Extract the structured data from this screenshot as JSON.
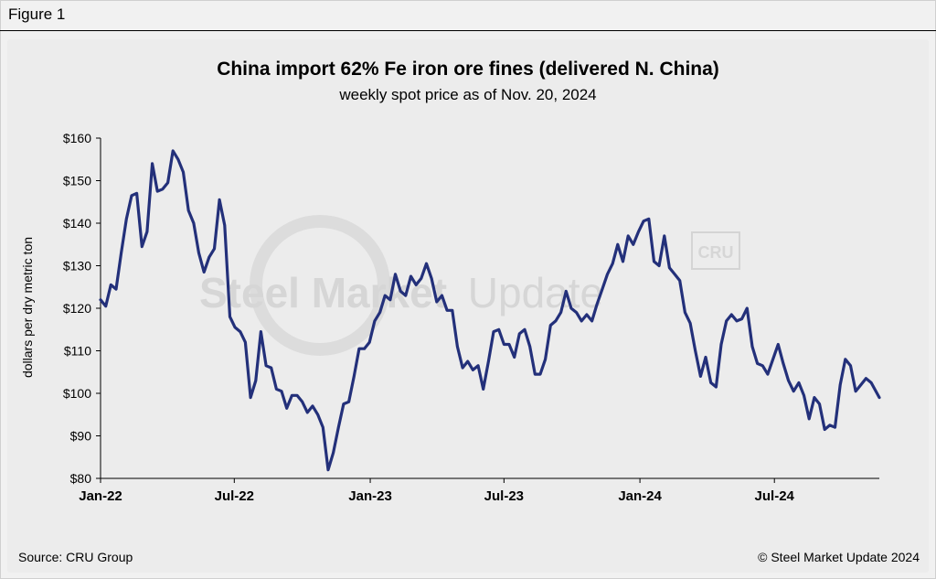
{
  "figure_label": "Figure 1",
  "footer": {
    "source": "Source: CRU Group",
    "copyright": "© Steel Market Update 2024"
  },
  "watermark": {
    "text_bold": "Steel Market",
    "text_light": "Update",
    "badge": "CRU"
  },
  "colors": {
    "line": "#23307a",
    "background": "#ececec",
    "watermark": "#d6d6d6"
  },
  "chart_data": {
    "type": "line",
    "title": "China import 62% Fe iron ore fines (delivered N. China)",
    "subtitle": "weekly spot price as of Nov. 20, 2024",
    "xlabel": "",
    "ylabel": "dollars per dry metric ton",
    "ylim": [
      80,
      160
    ],
    "yticks": [
      80,
      90,
      100,
      110,
      120,
      130,
      140,
      150,
      160
    ],
    "ytick_labels": [
      "$80",
      "$90",
      "$100",
      "$110",
      "$120",
      "$130",
      "$140",
      "$150",
      "$160"
    ],
    "xlim": [
      "2022-01-01",
      "2024-11-20"
    ],
    "xticks": [
      "2022-01-01",
      "2022-07-01",
      "2023-01-01",
      "2023-07-01",
      "2024-01-01",
      "2024-07-01"
    ],
    "xtick_labels": [
      "Jan-22",
      "Jul-22",
      "Jan-23",
      "Jul-23",
      "Jan-24",
      "Jul-24"
    ],
    "grid": false,
    "legend": "none",
    "series": [
      {
        "x": [
          "2022-01-01",
          "2022-01-08",
          "2022-01-15",
          "2022-01-22",
          "2022-01-29",
          "2022-02-05",
          "2022-02-12",
          "2022-02-19",
          "2022-02-26",
          "2022-03-05",
          "2022-03-12",
          "2022-03-19",
          "2022-03-26",
          "2022-04-02",
          "2022-04-09",
          "2022-04-16",
          "2022-04-23",
          "2022-04-30",
          "2022-05-07",
          "2022-05-14",
          "2022-05-21",
          "2022-05-28",
          "2022-06-04",
          "2022-06-11",
          "2022-06-18",
          "2022-06-25",
          "2022-07-02",
          "2022-07-09",
          "2022-07-16",
          "2022-07-23",
          "2022-07-30",
          "2022-08-06",
          "2022-08-13",
          "2022-08-20",
          "2022-08-27",
          "2022-09-03",
          "2022-09-10",
          "2022-09-17",
          "2022-09-24",
          "2022-10-01",
          "2022-10-08",
          "2022-10-15",
          "2022-10-22",
          "2022-10-29",
          "2022-11-05",
          "2022-11-12",
          "2022-11-19",
          "2022-11-26",
          "2022-12-03",
          "2022-12-10",
          "2022-12-17",
          "2022-12-24",
          "2022-12-31",
          "2023-01-07",
          "2023-01-14",
          "2023-01-21",
          "2023-01-28",
          "2023-02-04",
          "2023-02-11",
          "2023-02-18",
          "2023-02-25",
          "2023-03-04",
          "2023-03-11",
          "2023-03-18",
          "2023-03-25",
          "2023-04-01",
          "2023-04-08",
          "2023-04-15",
          "2023-04-22",
          "2023-04-29",
          "2023-05-06",
          "2023-05-13",
          "2023-05-20",
          "2023-05-27",
          "2023-06-03",
          "2023-06-10",
          "2023-06-17",
          "2023-06-24",
          "2023-07-01",
          "2023-07-08",
          "2023-07-15",
          "2023-07-22",
          "2023-07-29",
          "2023-08-05",
          "2023-08-12",
          "2023-08-19",
          "2023-08-26",
          "2023-09-02",
          "2023-09-09",
          "2023-09-16",
          "2023-09-23",
          "2023-09-30",
          "2023-10-07",
          "2023-10-14",
          "2023-10-21",
          "2023-10-28",
          "2023-11-04",
          "2023-11-11",
          "2023-11-18",
          "2023-11-25",
          "2023-12-02",
          "2023-12-09",
          "2023-12-16",
          "2023-12-23",
          "2023-12-30",
          "2024-01-06",
          "2024-01-13",
          "2024-01-20",
          "2024-01-27",
          "2024-02-03",
          "2024-02-10",
          "2024-02-17",
          "2024-02-24",
          "2024-03-02",
          "2024-03-09",
          "2024-03-16",
          "2024-03-23",
          "2024-03-30",
          "2024-04-06",
          "2024-04-13",
          "2024-04-20",
          "2024-04-27",
          "2024-05-04",
          "2024-05-11",
          "2024-05-18",
          "2024-05-25",
          "2024-06-01",
          "2024-06-08",
          "2024-06-15",
          "2024-06-22",
          "2024-06-29",
          "2024-07-06",
          "2024-07-13",
          "2024-07-20",
          "2024-07-27",
          "2024-08-03",
          "2024-08-10",
          "2024-08-17",
          "2024-08-24",
          "2024-08-31",
          "2024-09-07",
          "2024-09-14",
          "2024-09-21",
          "2024-09-28",
          "2024-10-05",
          "2024-10-12",
          "2024-10-19",
          "2024-10-26",
          "2024-11-02",
          "2024-11-09",
          "2024-11-20"
        ],
        "y": [
          122,
          120.5,
          125.5,
          124.5,
          133,
          141,
          146.5,
          147,
          134.5,
          138,
          154,
          147.5,
          148,
          149.5,
          157,
          155,
          152,
          143,
          140,
          133,
          128.5,
          132,
          134,
          145.5,
          139.5,
          118,
          115.5,
          114.5,
          112,
          99,
          103,
          114.5,
          106.5,
          106,
          101,
          100.5,
          96.5,
          99.5,
          99.5,
          98,
          95.5,
          97,
          95,
          92,
          82,
          86,
          92,
          97.5,
          98,
          104,
          110.5,
          110.5,
          112,
          117,
          119,
          123,
          122,
          128,
          124,
          123,
          127.5,
          125.5,
          127,
          130.5,
          127,
          121.5,
          123,
          119.5,
          119.5,
          111,
          106,
          107.5,
          105.5,
          106.5,
          101,
          107.5,
          114.5,
          115,
          111.5,
          111.5,
          108.5,
          114,
          115,
          111,
          104.5,
          104.5,
          108,
          116,
          117,
          119,
          124,
          120,
          119,
          117,
          118.5,
          117,
          121,
          124.5,
          128,
          130.5,
          135,
          131,
          137,
          135,
          138,
          140.5,
          141,
          131,
          130,
          137,
          129.5,
          128,
          126.5,
          119,
          116.5,
          110,
          104,
          108.5,
          102.5,
          101.5,
          111.5,
          117,
          118.5,
          117,
          117.5,
          120,
          111,
          107,
          106.5,
          104.5,
          108,
          111.5,
          107,
          103,
          100.5,
          102.5,
          99.5,
          94,
          99,
          97.5,
          91.5,
          92.5,
          92,
          102,
          108,
          106.5,
          100.5,
          102,
          103.5,
          102.5,
          99
        ]
      }
    ]
  }
}
